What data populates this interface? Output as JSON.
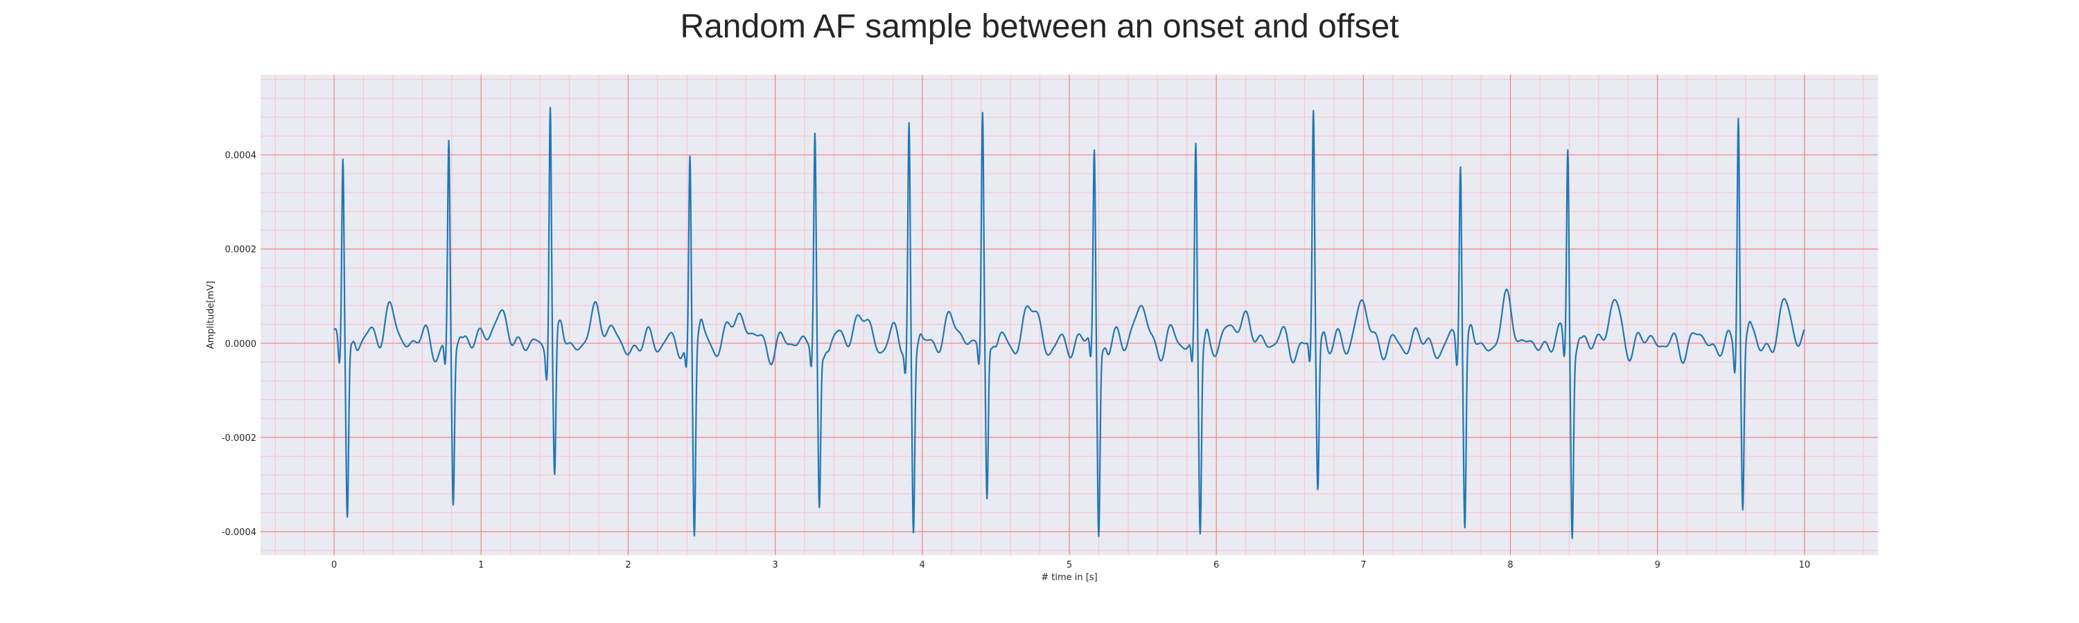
{
  "chart_data": {
    "type": "line",
    "title": "Random AF sample between an onset and offset",
    "xlabel": "# time in [s]",
    "ylabel": "Amplitude[mV]",
    "xlim": [
      -0.5,
      10.5
    ],
    "ylim": [
      -0.00045,
      0.00057
    ],
    "x_ticks": [
      0,
      1,
      2,
      3,
      4,
      5,
      6,
      7,
      8,
      9,
      10
    ],
    "x_tick_labels": [
      "0",
      "1",
      "2",
      "3",
      "4",
      "5",
      "6",
      "7",
      "8",
      "9",
      "10"
    ],
    "y_ticks": [
      -0.0004,
      -0.0002,
      0.0,
      0.0002,
      0.0004
    ],
    "y_tick_labels": [
      "-0.0004",
      "-0.0002",
      "0.0000",
      "0.0002",
      "0.0004"
    ],
    "grid": true,
    "minor_grid": true,
    "colors": {
      "line": "#1f77b4",
      "background": "#eaeaf2",
      "major_grid": "#f08080",
      "minor_grid": "#f7c3c8",
      "text": "#262626"
    },
    "series": [
      {
        "r_peak_times": [
          0.06,
          0.78,
          1.47,
          2.42,
          3.27,
          3.91,
          4.41,
          5.17,
          5.86,
          6.66,
          7.66,
          8.39,
          9.55
        ],
        "r_peak_amplitudes": [
          0.00041,
          0.00042,
          0.00053,
          0.0004,
          0.00043,
          0.00047,
          0.00047,
          0.0004,
          0.00042,
          0.00048,
          0.0004,
          0.00042,
          0.0005
        ],
        "s_trough_amplitudes": [
          -0.00036,
          -0.00035,
          -0.0003,
          -0.0004,
          -0.00035,
          -0.00039,
          -0.00035,
          -0.0004,
          -0.00039,
          -0.00032,
          -0.00039,
          -0.00039,
          -0.00035
        ],
        "x_start": 0.0,
        "x_end": 10.0
      }
    ]
  }
}
